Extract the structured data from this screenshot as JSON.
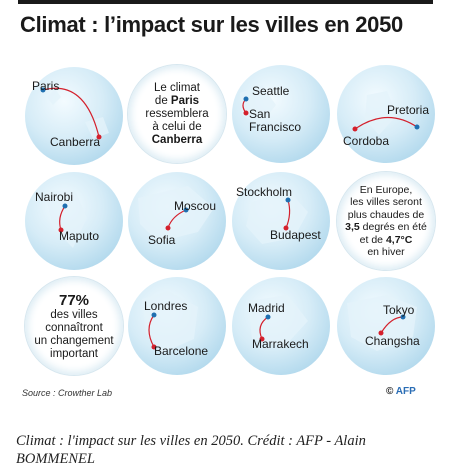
{
  "title": "Climat : l’impact sur les villes en 2050",
  "cards": {
    "c1": {
      "from": "Paris",
      "to": "Canberra"
    },
    "c2": {
      "l1": "Le climat",
      "l2": "de",
      "l2b": "Paris",
      "l3": "ressemblera",
      "l4": "à celui de",
      "l5": "Canberra"
    },
    "c3": {
      "from": "Seattle",
      "to1": "San",
      "to2": "Francisco"
    },
    "c4": {
      "from": "Pretoria",
      "to": "Cordoba"
    },
    "c5": {
      "from": "Nairobi",
      "to": "Maputo"
    },
    "c6": {
      "from": "Moscou",
      "to": "Sofia"
    },
    "c7": {
      "from": "Stockholm",
      "to": "Budapest"
    },
    "c8": {
      "l1": "En Europe,",
      "l2": "les villes seront",
      "l3": "plus chaudes de",
      "l4a": "3,5",
      "l4b": " degrés en été",
      "l5a": "et de ",
      "l5b": "4,7°C",
      "l6": "en hiver"
    },
    "c9": {
      "pct": "77%",
      "l1": "des villes",
      "l2": "connaîtront",
      "l3": "un changement",
      "l4": "important"
    },
    "c10": {
      "from": "Londres",
      "to": "Barcelone"
    },
    "c11": {
      "from": "Madrid",
      "to": "Marrakech"
    },
    "c12": {
      "from": "Tokyo",
      "to": "Changsha"
    }
  },
  "source": "Source : Crowther Lab",
  "credit": {
    "symbol": "©",
    "brand": "AFP"
  },
  "caption": "Climat : l'impact sur les villes en 2050. Crédit : AFP - Alain BOMMENEL",
  "colors": {
    "from_dot": "#1f6fb0",
    "to_dot": "#d4202c",
    "globe": "#c7e3f1"
  }
}
